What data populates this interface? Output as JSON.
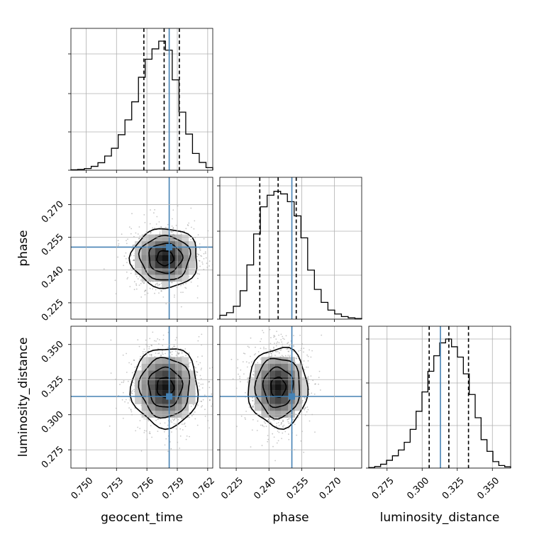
{
  "chart_data": {
    "type": "corner",
    "parameters": [
      "geocent_time",
      "phase",
      "luminosity_distance"
    ],
    "ranges": {
      "geocent_time": [
        0.7485,
        0.7625
      ],
      "phase": [
        0.2175,
        0.2825
      ],
      "luminosity_distance": [
        0.262,
        0.363
      ]
    },
    "ticks": {
      "geocent_time": [
        "0.750",
        "0.753",
        "0.756",
        "0.759",
        "0.762"
      ],
      "phase": [
        "0.225",
        "0.240",
        "0.255",
        "0.270"
      ],
      "luminosity_distance": [
        "0.275",
        "0.300",
        "0.325",
        "0.350"
      ]
    },
    "truths": {
      "geocent_time": 0.7582,
      "phase": 0.2505,
      "luminosity_distance": 0.313
    },
    "quantiles": {
      "geocent_time": [
        0.7557,
        0.7577,
        0.7592
      ],
      "phase": [
        0.2358,
        0.2442,
        0.2525
      ],
      "luminosity_distance": [
        0.305,
        0.319,
        0.333
      ]
    },
    "histograms": {
      "geocent_time": [
        0.003,
        0.006,
        0.013,
        0.03,
        0.058,
        0.11,
        0.17,
        0.275,
        0.39,
        0.53,
        0.72,
        0.86,
        0.94,
        1.0,
        0.93,
        0.7,
        0.45,
        0.28,
        0.13,
        0.06,
        0.02
      ],
      "phase": [
        0.03,
        0.05,
        0.1,
        0.22,
        0.42,
        0.66,
        0.87,
        0.96,
        0.99,
        0.97,
        0.91,
        0.8,
        0.63,
        0.38,
        0.23,
        0.13,
        0.07,
        0.04,
        0.02,
        0.01,
        0.005
      ],
      "luminosity_distance": [
        0.004,
        0.012,
        0.03,
        0.06,
        0.095,
        0.14,
        0.2,
        0.3,
        0.44,
        0.59,
        0.75,
        0.87,
        0.97,
        1.0,
        0.94,
        0.86,
        0.73,
        0.57,
        0.39,
        0.22,
        0.13,
        0.05,
        0.02,
        0.01
      ]
    },
    "histogram_ticks": {
      "geocent_time": [
        0.0,
        0.27,
        0.54,
        0.82
      ],
      "phase": [
        0.0,
        0.31,
        0.62,
        0.94
      ],
      "luminosity_distance": [
        0.0,
        0.3,
        0.6,
        0.91
      ]
    },
    "density_2d": {
      "geocent_time-phase": {
        "center": [
          0.7578,
          0.2455
        ],
        "sd": [
          0.00165,
          0.0068
        ]
      },
      "geocent_time-luminosity_distance": {
        "center": [
          0.7578,
          0.3195
        ],
        "sd": [
          0.00165,
          0.0142
        ]
      },
      "phase-luminosity_distance": {
        "center": [
          0.2442,
          0.3195
        ],
        "sd": [
          0.0068,
          0.0142
        ]
      }
    }
  }
}
